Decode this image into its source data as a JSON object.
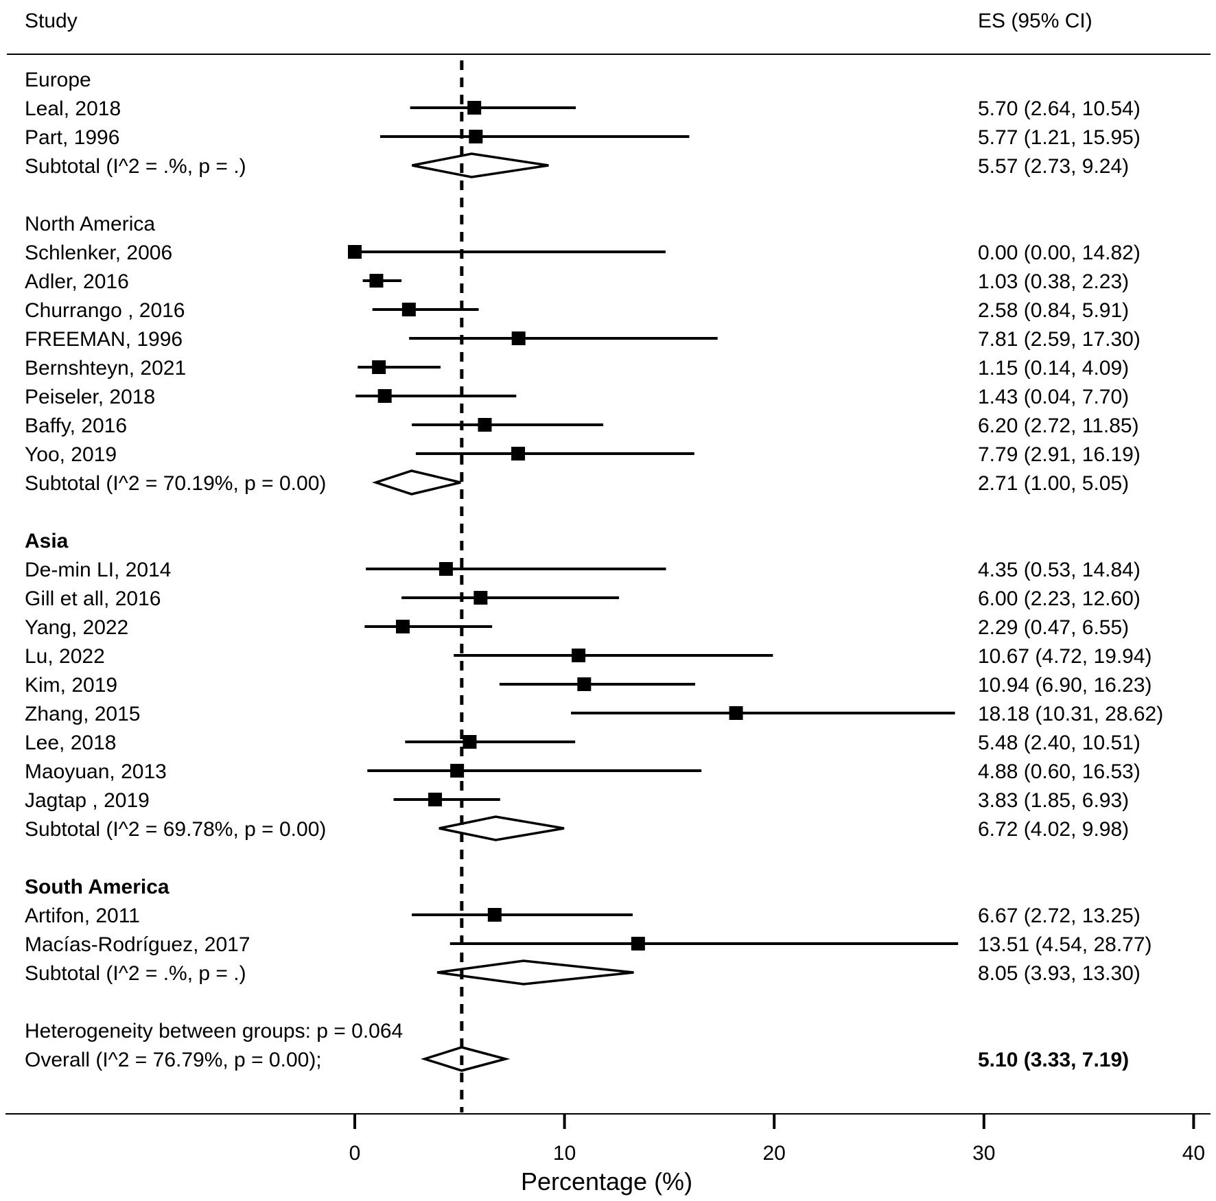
{
  "chart_data": {
    "type": "forest",
    "header": {
      "study": "Study",
      "es": "ES (95% CI)"
    },
    "xlabel": "Percentage (%)",
    "xlim": [
      0,
      40
    ],
    "xticks": [
      0,
      10,
      20,
      30,
      40
    ],
    "reference_line": 5.1,
    "rows": [
      {
        "kind": "group",
        "label": "Europe",
        "bold": false
      },
      {
        "kind": "study",
        "label": "Leal, 2018",
        "es": 5.7,
        "lo": 2.64,
        "hi": 10.54,
        "text": "5.70 (2.64, 10.54)"
      },
      {
        "kind": "study",
        "label": "Part, 1996",
        "es": 5.77,
        "lo": 1.21,
        "hi": 15.95,
        "text": "5.77 (1.21, 15.95)"
      },
      {
        "kind": "subtotal",
        "label": "Subtotal  (I^2 = .%, p = .)",
        "es": 5.57,
        "lo": 2.73,
        "hi": 9.24,
        "text": "5.57 (2.73, 9.24)"
      },
      {
        "kind": "blank"
      },
      {
        "kind": "group",
        "label": "North America",
        "bold": false
      },
      {
        "kind": "study",
        "label": "Schlenker, 2006",
        "es": 0.0,
        "lo": 0.0,
        "hi": 14.82,
        "text": "0.00 (0.00, 14.82)"
      },
      {
        "kind": "study",
        "label": "Adler, 2016",
        "es": 1.03,
        "lo": 0.38,
        "hi": 2.23,
        "text": "1.03 (0.38, 2.23)"
      },
      {
        "kind": "study",
        "label": "Churrango , 2016",
        "es": 2.58,
        "lo": 0.84,
        "hi": 5.91,
        "text": "2.58 (0.84, 5.91)"
      },
      {
        "kind": "study",
        "label": "FREEMAN,  1996",
        "es": 7.81,
        "lo": 2.59,
        "hi": 17.3,
        "text": "7.81 (2.59, 17.30)"
      },
      {
        "kind": "study",
        "label": "Bernshteyn, 2021",
        "es": 1.15,
        "lo": 0.14,
        "hi": 4.09,
        "text": "1.15 (0.14, 4.09)"
      },
      {
        "kind": "study",
        "label": "Peiseler, 2018",
        "es": 1.43,
        "lo": 0.04,
        "hi": 7.7,
        "text": "1.43 (0.04, 7.70)"
      },
      {
        "kind": "study",
        "label": "Baffy, 2016",
        "es": 6.2,
        "lo": 2.72,
        "hi": 11.85,
        "text": "6.20 (2.72, 11.85)"
      },
      {
        "kind": "study",
        "label": "Yoo, 2019",
        "es": 7.79,
        "lo": 2.91,
        "hi": 16.19,
        "text": "7.79 (2.91, 16.19)"
      },
      {
        "kind": "subtotal",
        "label": "Subtotal  (I^2 = 70.19%, p = 0.00)",
        "es": 2.71,
        "lo": 1.0,
        "hi": 5.05,
        "text": "2.71 (1.00, 5.05)"
      },
      {
        "kind": "blank"
      },
      {
        "kind": "group",
        "label": "Asia",
        "bold": true
      },
      {
        "kind": "study",
        "label": "De-min LI, 2014",
        "es": 4.35,
        "lo": 0.53,
        "hi": 14.84,
        "text": "4.35 (0.53, 14.84)"
      },
      {
        "kind": "study",
        "label": "Gill et all, 2016",
        "es": 6.0,
        "lo": 2.23,
        "hi": 12.6,
        "text": "6.00 (2.23, 12.60)"
      },
      {
        "kind": "study",
        "label": "Yang, 2022",
        "es": 2.29,
        "lo": 0.47,
        "hi": 6.55,
        "text": "2.29 (0.47, 6.55)"
      },
      {
        "kind": "study",
        "label": "Lu, 2022",
        "es": 10.67,
        "lo": 4.72,
        "hi": 19.94,
        "text": "10.67 (4.72, 19.94)"
      },
      {
        "kind": "study",
        "label": "Kim, 2019",
        "es": 10.94,
        "lo": 6.9,
        "hi": 16.23,
        "text": "10.94 (6.90, 16.23)"
      },
      {
        "kind": "study",
        "label": "Zhang, 2015",
        "es": 18.18,
        "lo": 10.31,
        "hi": 28.62,
        "text": "18.18 (10.31, 28.62)"
      },
      {
        "kind": "study",
        "label": "Lee, 2018",
        "es": 5.48,
        "lo": 2.4,
        "hi": 10.51,
        "text": "5.48 (2.40, 10.51)"
      },
      {
        "kind": "study",
        "label": "Maoyuan, 2013",
        "es": 4.88,
        "lo": 0.6,
        "hi": 16.53,
        "text": "4.88 (0.60, 16.53)"
      },
      {
        "kind": "study",
        "label": "Jagtap , 2019",
        "es": 3.83,
        "lo": 1.85,
        "hi": 6.93,
        "text": "3.83 (1.85, 6.93)"
      },
      {
        "kind": "subtotal",
        "label": "Subtotal  (I^2 = 69.78%, p = 0.00)",
        "es": 6.72,
        "lo": 4.02,
        "hi": 9.98,
        "text": "6.72 (4.02, 9.98)"
      },
      {
        "kind": "blank"
      },
      {
        "kind": "group",
        "label": "South America",
        "bold": true
      },
      {
        "kind": "study",
        "label": "Artifon, 2011",
        "es": 6.67,
        "lo": 2.72,
        "hi": 13.25,
        "text": "6.67 (2.72, 13.25)"
      },
      {
        "kind": "study",
        "label": "Macías-Rodríguez, 2017",
        "es": 13.51,
        "lo": 4.54,
        "hi": 28.77,
        "text": "13.51 (4.54, 28.77)"
      },
      {
        "kind": "subtotal",
        "label": "Subtotal  (I^2 = .%, p = .)",
        "es": 8.05,
        "lo": 3.93,
        "hi": 13.3,
        "text": "8.05 (3.93, 13.30)"
      },
      {
        "kind": "blank"
      },
      {
        "kind": "note",
        "label": "Heterogeneity between groups: p = 0.064"
      },
      {
        "kind": "overall",
        "label": "Overall  (I^2 = 76.79%, p = 0.00);",
        "es": 5.1,
        "lo": 3.33,
        "hi": 7.19,
        "text": "5.10 (3.33, 7.19)"
      }
    ]
  }
}
